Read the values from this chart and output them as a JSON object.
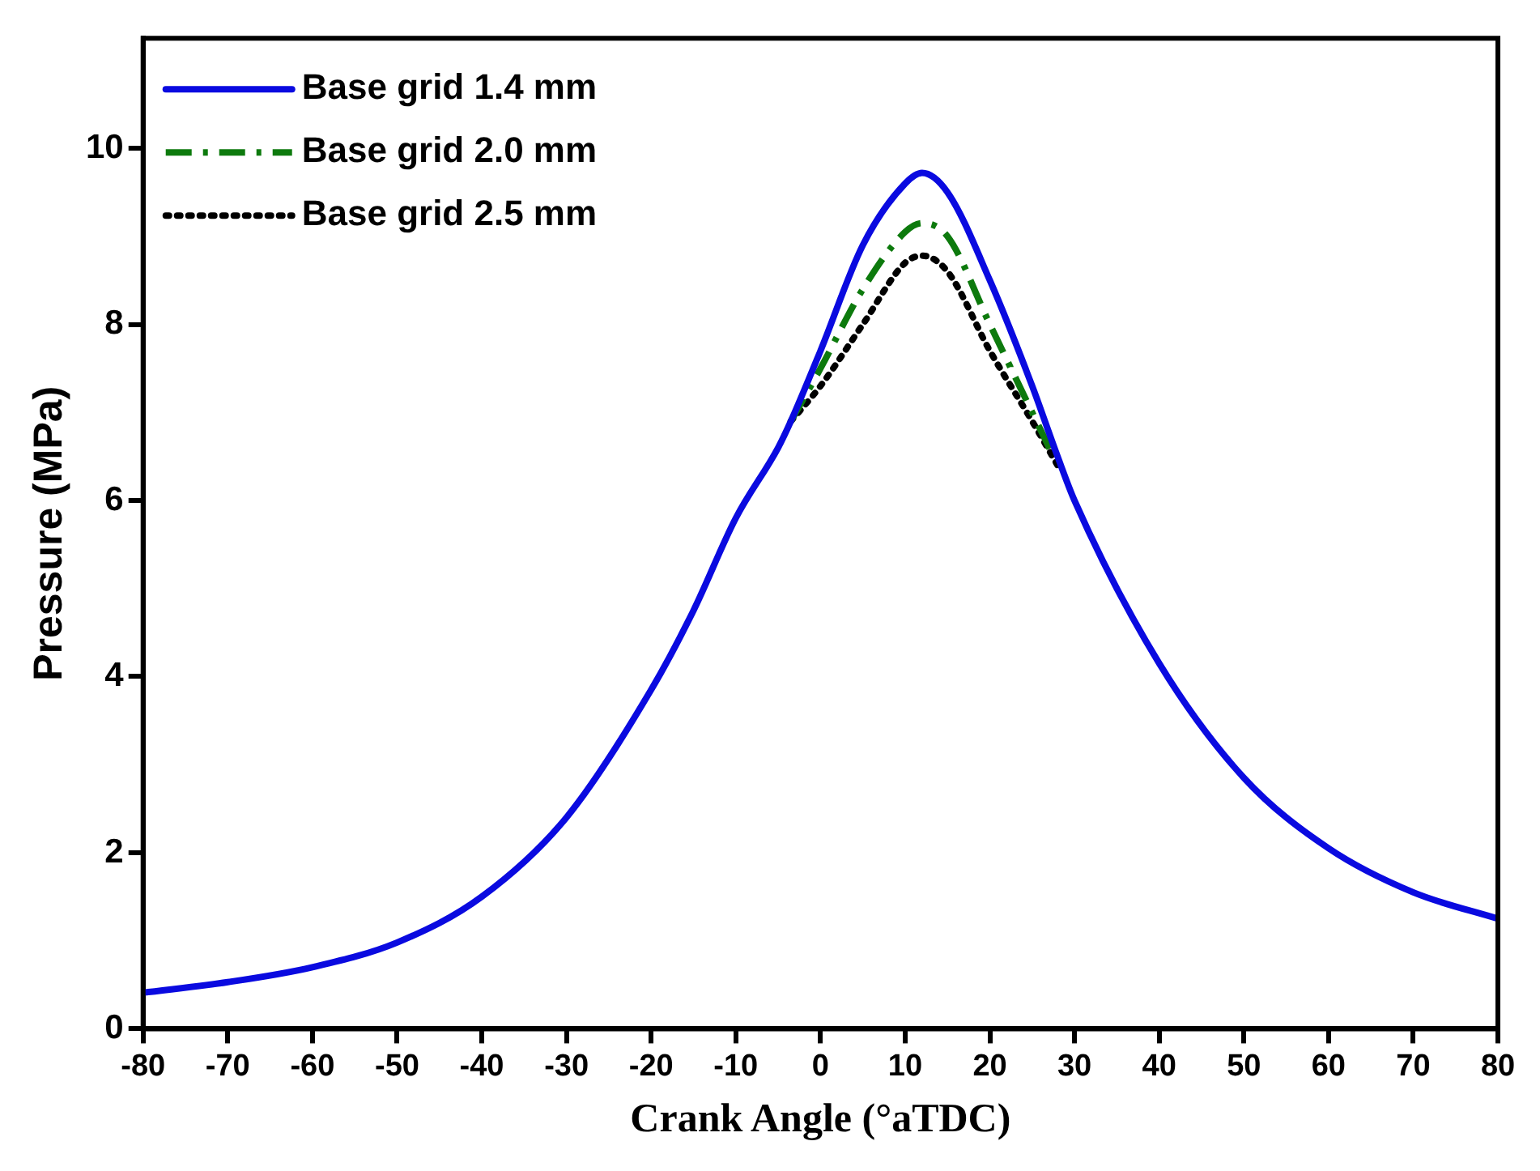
{
  "chart_data": {
    "type": "line",
    "xlabel": "Crank Angle (°aTDC)",
    "ylabel": "Pressure (MPa)",
    "xlim": [
      -80,
      80
    ],
    "xticks": [
      -80,
      -70,
      -60,
      -50,
      -40,
      -30,
      -20,
      -10,
      0,
      10,
      20,
      30,
      40,
      50,
      60,
      70,
      80
    ],
    "ylim": [
      0,
      11.25
    ],
    "yticks": [
      0,
      2,
      4,
      6,
      8,
      10
    ],
    "grid": false,
    "legend": "top left",
    "marker": "none",
    "series": [
      {
        "name": "Base grid 1.4 mm",
        "color": "#0a0ae0",
        "line_style": "solid",
        "x": [
          -80,
          -70,
          -60,
          -50,
          -40,
          -30,
          -20,
          -15,
          -10,
          -5,
          -3.5,
          0,
          5,
          10,
          12,
          15,
          20,
          25,
          28,
          30,
          40,
          50,
          60,
          70,
          80
        ],
        "values": [
          0.41,
          0.53,
          0.7,
          0.98,
          1.5,
          2.4,
          3.85,
          4.75,
          5.8,
          6.6,
          6.9,
          7.7,
          8.9,
          9.6,
          9.72,
          9.5,
          8.5,
          7.3,
          6.5,
          6.0,
          4.15,
          2.85,
          2.05,
          1.55,
          1.25
        ]
      },
      {
        "name": "Base grid 2.0 mm",
        "color": "#0d7a0d",
        "line_style": "dashdot",
        "x": [
          -3.5,
          0,
          5,
          10,
          12,
          15,
          20,
          25,
          27.5
        ],
        "values": [
          6.9,
          7.5,
          8.4,
          9.05,
          9.15,
          9.0,
          8.0,
          7.0,
          6.5
        ]
      },
      {
        "name": "Base grid 2.5 mm",
        "color": "#000000",
        "line_style": "dotted",
        "x": [
          -3.5,
          0,
          5,
          10,
          12,
          15,
          20,
          25,
          28
        ],
        "values": [
          6.9,
          7.3,
          8.0,
          8.7,
          8.78,
          8.6,
          7.7,
          6.9,
          6.4
        ]
      }
    ]
  }
}
